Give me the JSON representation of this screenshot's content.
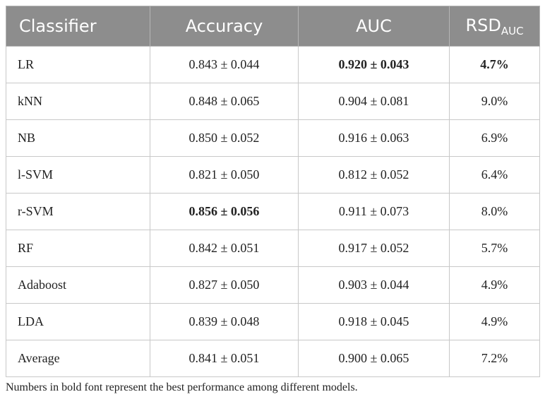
{
  "table": {
    "header": [
      "Classifier",
      "Accuracy",
      "AUC",
      {
        "text": "RSD",
        "sub": "AUC"
      }
    ],
    "rows": [
      [
        "LR",
        "0.843 ± 0.044",
        "0.920 ± 0.043",
        "4.7%"
      ],
      [
        "kNN",
        "0.848 ± 0.065",
        "0.904 ± 0.081",
        "9.0%"
      ],
      [
        "NB",
        "0.850 ± 0.052",
        "0.916 ± 0.063",
        "6.9%"
      ],
      [
        "l-SVM",
        "0.821 ± 0.050",
        "0.812 ± 0.052",
        "6.4%"
      ],
      [
        "r-SVM",
        "0.856 ± 0.056",
        "0.911 ± 0.073",
        "8.0%"
      ],
      [
        "RF",
        "0.842 ± 0.051",
        "0.917 ± 0.052",
        "5.7%"
      ],
      [
        "Adaboost",
        "0.827 ± 0.050",
        "0.903 ± 0.044",
        "4.9%"
      ],
      [
        "LDA",
        "0.839 ± 0.048",
        "0.918 ± 0.045",
        "4.9%"
      ],
      [
        "Average",
        "0.841 ± 0.051",
        "0.900 ± 0.065",
        "7.2%"
      ]
    ],
    "bold_cells": [
      [
        0,
        2
      ],
      [
        0,
        3
      ],
      [
        4,
        1
      ]
    ],
    "footnote": "Numbers in bold font represent the best performance among different models."
  }
}
